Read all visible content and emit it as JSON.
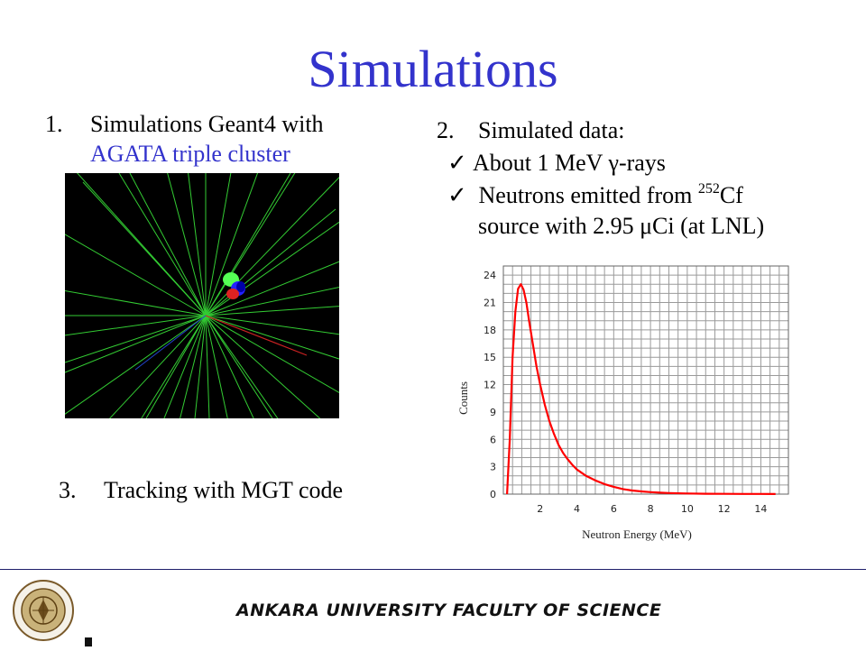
{
  "title": "Simulations",
  "item1": {
    "number": "1.",
    "line1": "Simulations Geant4 with",
    "line2": "AGATA triple cluster"
  },
  "item2": {
    "number": "2.",
    "heading": "Simulated data:",
    "bullet1": "About 1 MeV γ-rays",
    "bullet2_pre": " Neutrons emitted from ",
    "bullet2_sup": "252",
    "bullet2_post": "Cf",
    "bullet2_line2": "source with 2.95 μCi (at LNL)"
  },
  "item3": {
    "number": "3.",
    "text": "Tracking with MGT code"
  },
  "footer": {
    "institution": "ANKARA UNIVERSITY FACULTY OF SCIENCE"
  },
  "logo": {
    "ring_text": "ANKARA ÜNİVERSİTESİ",
    "year": "1946"
  },
  "colors": {
    "accent": "#3333cc",
    "track": "#33cc33",
    "curve": "#ff0000"
  },
  "chart_data": {
    "type": "line",
    "title": "",
    "xlabel": "Neutron Energy (MeV)",
    "ylabel": "Counts",
    "xlim": [
      0,
      15.5
    ],
    "ylim": [
      0,
      25
    ],
    "xticks": [
      2,
      4,
      6,
      8,
      10,
      12,
      14
    ],
    "yticks": [
      0,
      3,
      6,
      9,
      12,
      15,
      18,
      21,
      24
    ],
    "grid": true,
    "series": [
      {
        "x": [
          0.2,
          0.35,
          0.5,
          0.65,
          0.8,
          0.95,
          1.1,
          1.25,
          1.4,
          1.6,
          1.8,
          2.0,
          2.25,
          2.5,
          2.75,
          3.0,
          3.25,
          3.5,
          3.75,
          4.0,
          4.5,
          5.0,
          5.5,
          6.0,
          6.5,
          7.0,
          7.5,
          8.0,
          8.5,
          9.0,
          10.0,
          11.0,
          12.0,
          13.0,
          14.0,
          14.8
        ],
        "y": [
          0,
          6,
          15,
          20,
          22.5,
          23.0,
          22.4,
          21.0,
          19.0,
          16.5,
          14.0,
          12.0,
          9.8,
          8.0,
          6.6,
          5.4,
          4.5,
          3.8,
          3.2,
          2.7,
          2.0,
          1.5,
          1.1,
          0.8,
          0.55,
          0.4,
          0.3,
          0.22,
          0.16,
          0.12,
          0.07,
          0.04,
          0.03,
          0.02,
          0.02,
          0.01
        ]
      }
    ]
  }
}
